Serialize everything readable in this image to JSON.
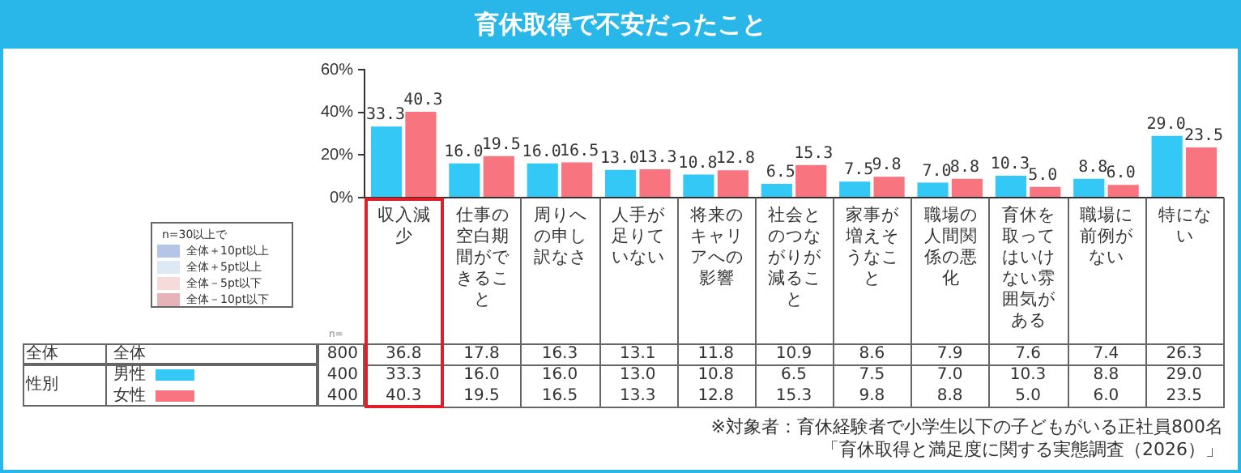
{
  "chart_data": {
    "type": "bar",
    "title": "育休取得で不安だったこと",
    "categories": [
      "収入減少",
      "仕事の空白期間ができること",
      "周りへの申し訳なさ",
      "人手が足りていない",
      "将来のキャリアへの影響",
      "社会とのつながりが減ること",
      "家事が増えそうなこと",
      "職場の人間関係の悪化",
      "育休を取ってはいけない雰囲気がある",
      "職場に前例がない",
      "特にない"
    ],
    "series": [
      {
        "name": "男性",
        "color": "#33c8f5",
        "values": [
          33.3,
          16.0,
          16.0,
          13.0,
          10.8,
          6.5,
          7.5,
          7.0,
          10.3,
          8.8,
          29.0
        ],
        "value_labels": [
          "33.3",
          "16.0",
          "16.0",
          "13.0",
          "10.8",
          "6.5",
          "7.5",
          "7.0",
          "10.3",
          "8.8",
          "29.0"
        ]
      },
      {
        "name": "女性",
        "color": "#f8747f",
        "values": [
          40.3,
          19.5,
          16.5,
          13.3,
          12.8,
          15.3,
          9.8,
          8.8,
          5.0,
          6.0,
          23.5
        ],
        "value_labels": [
          "40.3",
          "19.5",
          "16.5",
          "13.3",
          "12.8",
          "15.3",
          "9.8",
          "8.8",
          "5.0",
          "6.0",
          "23.5"
        ]
      }
    ],
    "ylim": [
      0,
      60
    ],
    "yticks": [
      {
        "value": 0,
        "label": "0%"
      },
      {
        "value": 20,
        "label": "20%"
      },
      {
        "value": 40,
        "label": "40%"
      },
      {
        "value": 60,
        "label": "60%"
      }
    ],
    "grid": false,
    "data_labels": true,
    "legend": "bottom left",
    "annotations": [
      "n=30以上で",
      "全体＋10pt以上",
      "全体＋5pt以上",
      "全体－5pt以下",
      "全体－10pt以下",
      "全体",
      "全体",
      "800",
      "性別",
      "400",
      "400",
      "n=",
      "36.8",
      "17.8",
      "16.3",
      "13.1",
      "11.8",
      "10.9",
      "8.6",
      "7.9",
      "7.6",
      "7.4",
      "26.3",
      "※対象者：育休経験者で小学生以下の子どもがいる正社員800名",
      "「育休取得と満足度に関する実態調査（2026）」"
    ]
  }
}
